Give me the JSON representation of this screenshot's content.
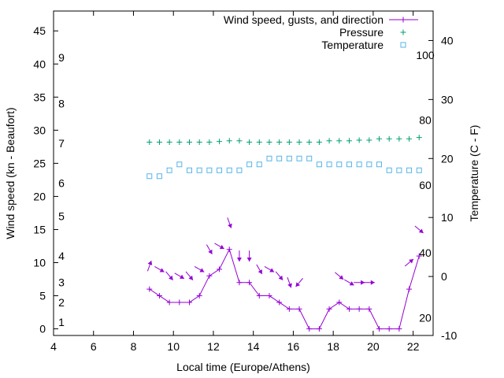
{
  "chart_data": {
    "type": "line",
    "xlabel": "Local time (Europe/Athens)",
    "ylabel": "Wind speed (kn - Beaufort)",
    "y2label": "Temperature (C - F)",
    "xlim": [
      4,
      23
    ],
    "ylim": [
      -1,
      48
    ],
    "y2lim": [
      -10,
      45
    ],
    "xticks": [
      "4",
      "6",
      "8",
      "10",
      "12",
      "14",
      "16",
      "18",
      "20",
      "22"
    ],
    "yticks": [
      "0",
      "5",
      "10",
      "15",
      "20",
      "25",
      "30",
      "35",
      "40",
      "45"
    ],
    "y2ticks": [
      "-10",
      "0",
      "10",
      "20",
      "30",
      "40"
    ],
    "beaufort_labels": [
      {
        "y": 1,
        "text": "1"
      },
      {
        "y": 4,
        "text": "2"
      },
      {
        "y": 7,
        "text": "3"
      },
      {
        "y": 11,
        "text": "4"
      },
      {
        "y": 17,
        "text": "5"
      },
      {
        "y": 22,
        "text": "6"
      },
      {
        "y": 28,
        "text": "7"
      },
      {
        "y": 34,
        "text": "8"
      },
      {
        "y": 41,
        "text": "9"
      }
    ],
    "fahrenheit_labels": [
      {
        "y2": -7,
        "text": "20"
      },
      {
        "y2": 4,
        "text": "40"
      },
      {
        "y2": 15.5,
        "text": "60"
      },
      {
        "y2": 26.5,
        "text": "80"
      },
      {
        "y2": 37.5,
        "text": "100"
      }
    ],
    "legend": {
      "position": "top-right",
      "entries": [
        "Wind speed, gusts, and direction",
        "Pressure",
        "Temperature"
      ]
    },
    "grid": false,
    "series": [
      {
        "name": "Wind speed, gusts, and direction",
        "color": "#9400d3",
        "marker": "plus",
        "x": [
          8.8,
          9.3,
          9.8,
          10.3,
          10.8,
          11.3,
          11.8,
          12.3,
          12.8,
          13.3,
          13.8,
          14.3,
          14.8,
          15.3,
          15.8,
          16.3,
          16.8,
          17.3,
          17.8,
          18.3,
          18.8,
          19.3,
          19.8,
          20.3,
          20.8,
          21.3,
          21.8,
          22.3
        ],
        "values": [
          6,
          5,
          4,
          4,
          4,
          5,
          8,
          9,
          12,
          7,
          7,
          5,
          5,
          4,
          3,
          3,
          0,
          0,
          3,
          4,
          3,
          3,
          3,
          0,
          0,
          0,
          6,
          11
        ]
      },
      {
        "name": "Pressure",
        "color": "#009e73",
        "marker": "plus",
        "x": [
          8.8,
          9.3,
          9.8,
          10.3,
          10.8,
          11.3,
          11.8,
          12.3,
          12.8,
          13.3,
          13.8,
          14.3,
          14.8,
          15.3,
          15.8,
          16.3,
          16.8,
          17.3,
          17.8,
          18.3,
          18.8,
          19.3,
          19.8,
          20.3,
          20.8,
          21.3,
          21.8,
          22.3
        ],
        "values": [
          28.2,
          28.2,
          28.2,
          28.2,
          28.2,
          28.2,
          28.2,
          28.3,
          28.4,
          28.4,
          28.2,
          28.2,
          28.2,
          28.2,
          28.2,
          28.2,
          28.2,
          28.2,
          28.4,
          28.4,
          28.4,
          28.5,
          28.5,
          28.7,
          28.7,
          28.7,
          28.7,
          28.9
        ]
      },
      {
        "name": "Temperature",
        "color": "#56b4e9",
        "marker": "square",
        "x": [
          8.8,
          9.3,
          9.8,
          10.3,
          10.8,
          11.3,
          11.8,
          12.3,
          12.8,
          13.3,
          13.8,
          14.3,
          14.8,
          15.3,
          15.8,
          16.3,
          16.8,
          17.3,
          17.8,
          18.3,
          18.8,
          19.3,
          19.8,
          20.3,
          20.8,
          21.3,
          21.8,
          22.3
        ],
        "values": [
          17,
          17,
          18,
          19,
          18,
          18,
          18,
          18,
          18,
          18,
          19,
          19,
          20,
          20,
          20,
          20,
          20,
          19,
          19,
          19,
          19,
          19,
          19,
          19,
          18,
          18,
          18,
          18
        ]
      }
    ],
    "gust_arrows": [
      {
        "x": 8.8,
        "y": 9.5,
        "dir": 200
      },
      {
        "x": 9.3,
        "y": 9,
        "dir": 300
      },
      {
        "x": 9.8,
        "y": 8,
        "dir": 320
      },
      {
        "x": 10.3,
        "y": 8,
        "dir": 300
      },
      {
        "x": 10.8,
        "y": 8,
        "dir": 320
      },
      {
        "x": 11.3,
        "y": 9,
        "dir": 300
      },
      {
        "x": 11.8,
        "y": 12,
        "dir": 330
      },
      {
        "x": 12.3,
        "y": 12.5,
        "dir": 300
      },
      {
        "x": 12.8,
        "y": 16,
        "dir": 340
      },
      {
        "x": 13.3,
        "y": 11,
        "dir": 0
      },
      {
        "x": 13.8,
        "y": 11,
        "dir": 0
      },
      {
        "x": 14.3,
        "y": 9,
        "dir": 330
      },
      {
        "x": 14.8,
        "y": 9,
        "dir": 300
      },
      {
        "x": 15.3,
        "y": 8,
        "dir": 320
      },
      {
        "x": 15.8,
        "y": 7,
        "dir": 340
      },
      {
        "x": 16.3,
        "y": 7,
        "dir": 40
      },
      {
        "x": 18.3,
        "y": 8,
        "dir": 310
      },
      {
        "x": 18.8,
        "y": 7,
        "dir": 300
      },
      {
        "x": 19.3,
        "y": 7,
        "dir": 270
      },
      {
        "x": 19.8,
        "y": 7,
        "dir": 270
      },
      {
        "x": 21.8,
        "y": 10,
        "dir": 230
      },
      {
        "x": 22.3,
        "y": 15,
        "dir": 310
      }
    ]
  }
}
